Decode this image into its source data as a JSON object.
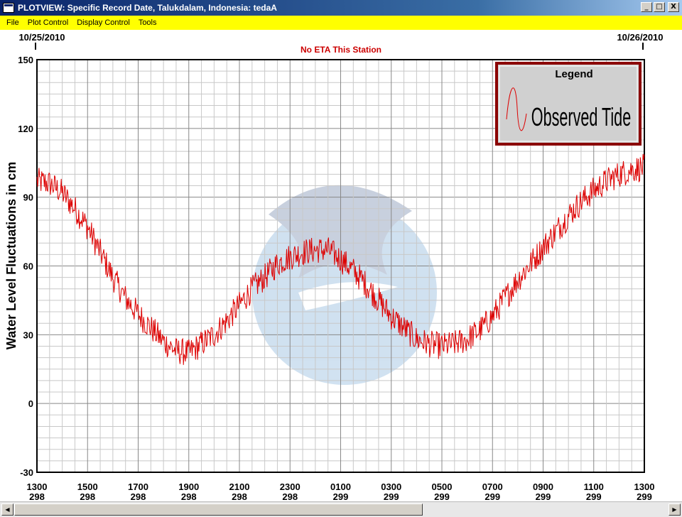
{
  "window": {
    "title": "PLOTVIEW: Specific Record Date, Talukdalam, Indonesia: tedaA",
    "buttons": {
      "minimize": "_",
      "maximize": "□",
      "close": "X"
    }
  },
  "menu": [
    "File",
    "Plot Control",
    "Display Control",
    "Tools"
  ],
  "chart": {
    "start_date": "10/25/2010",
    "end_date": "10/26/2010",
    "eta_note": "No ETA This Station",
    "legend_title": "Legend",
    "legend_label": "Observed Tide",
    "series_color": "#dd0000"
  },
  "chart_data": {
    "type": "line",
    "ylabel": "Water Level Fluctuations in cm",
    "ylim": [
      -30,
      150
    ],
    "yticks": [
      "150",
      "120",
      "90",
      "60",
      "30",
      "0",
      "-30"
    ],
    "xlim": [
      13,
      37
    ],
    "xticks": [
      {
        "time": "1300",
        "day": "298"
      },
      {
        "time": "1500",
        "day": "298"
      },
      {
        "time": "1700",
        "day": "298"
      },
      {
        "time": "1900",
        "day": "298"
      },
      {
        "time": "2100",
        "day": "298"
      },
      {
        "time": "2300",
        "day": "298"
      },
      {
        "time": "0100",
        "day": "299"
      },
      {
        "time": "0300",
        "day": "299"
      },
      {
        "time": "0500",
        "day": "299"
      },
      {
        "time": "0700",
        "day": "299"
      },
      {
        "time": "0900",
        "day": "299"
      },
      {
        "time": "1100",
        "day": "299"
      },
      {
        "time": "1300",
        "day": "299"
      }
    ],
    "grid": true,
    "legend_position": "top-right",
    "series": [
      {
        "name": "Observed Tide",
        "x": [
          13,
          13.5,
          14,
          14.5,
          15,
          15.5,
          16,
          16.5,
          17,
          17.5,
          18,
          18.5,
          19,
          19.5,
          20,
          20.5,
          21,
          21.5,
          22,
          22.5,
          23,
          23.5,
          24,
          24.5,
          25,
          25.5,
          26,
          26.5,
          27,
          27.5,
          28,
          28.5,
          29,
          29.5,
          30,
          30.5,
          31,
          31.5,
          32,
          32.5,
          33,
          33.5,
          34,
          34.5,
          35,
          35.5,
          36,
          36.5,
          37
        ],
        "y": [
          97,
          96,
          92,
          85,
          77,
          66,
          55,
          46,
          39,
          33,
          27,
          23,
          22,
          26,
          30,
          36,
          43,
          50,
          55,
          61,
          64,
          66,
          67,
          67,
          63,
          58,
          52,
          45,
          38,
          33,
          28,
          26,
          25,
          26,
          28,
          32,
          38,
          46,
          54,
          61,
          68,
          75,
          82,
          88,
          93,
          97,
          100,
          102,
          103
        ]
      }
    ]
  }
}
